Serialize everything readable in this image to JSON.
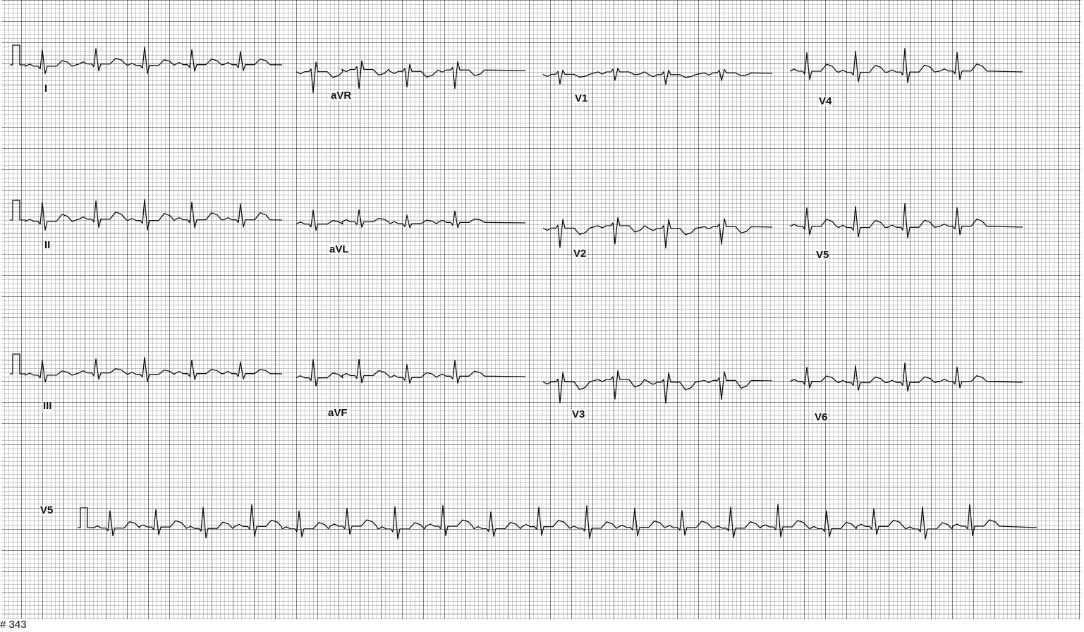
{
  "ecg": {
    "colors": {
      "paper": "#ffffff",
      "grid_minor": "#000000",
      "grid_major": "#000000",
      "trace": "#111111"
    },
    "leads": {
      "I": "I",
      "aVR": "aVR",
      "V1": "V1",
      "V4": "V4",
      "II": "II",
      "aVL": "aVL",
      "V2": "V2",
      "V5_row2": "V5",
      "III": "III",
      "aVF": "aVF",
      "V3": "V3",
      "V6": "V6",
      "V5_rhythm": "V5"
    },
    "record_number": "# 343"
  }
}
